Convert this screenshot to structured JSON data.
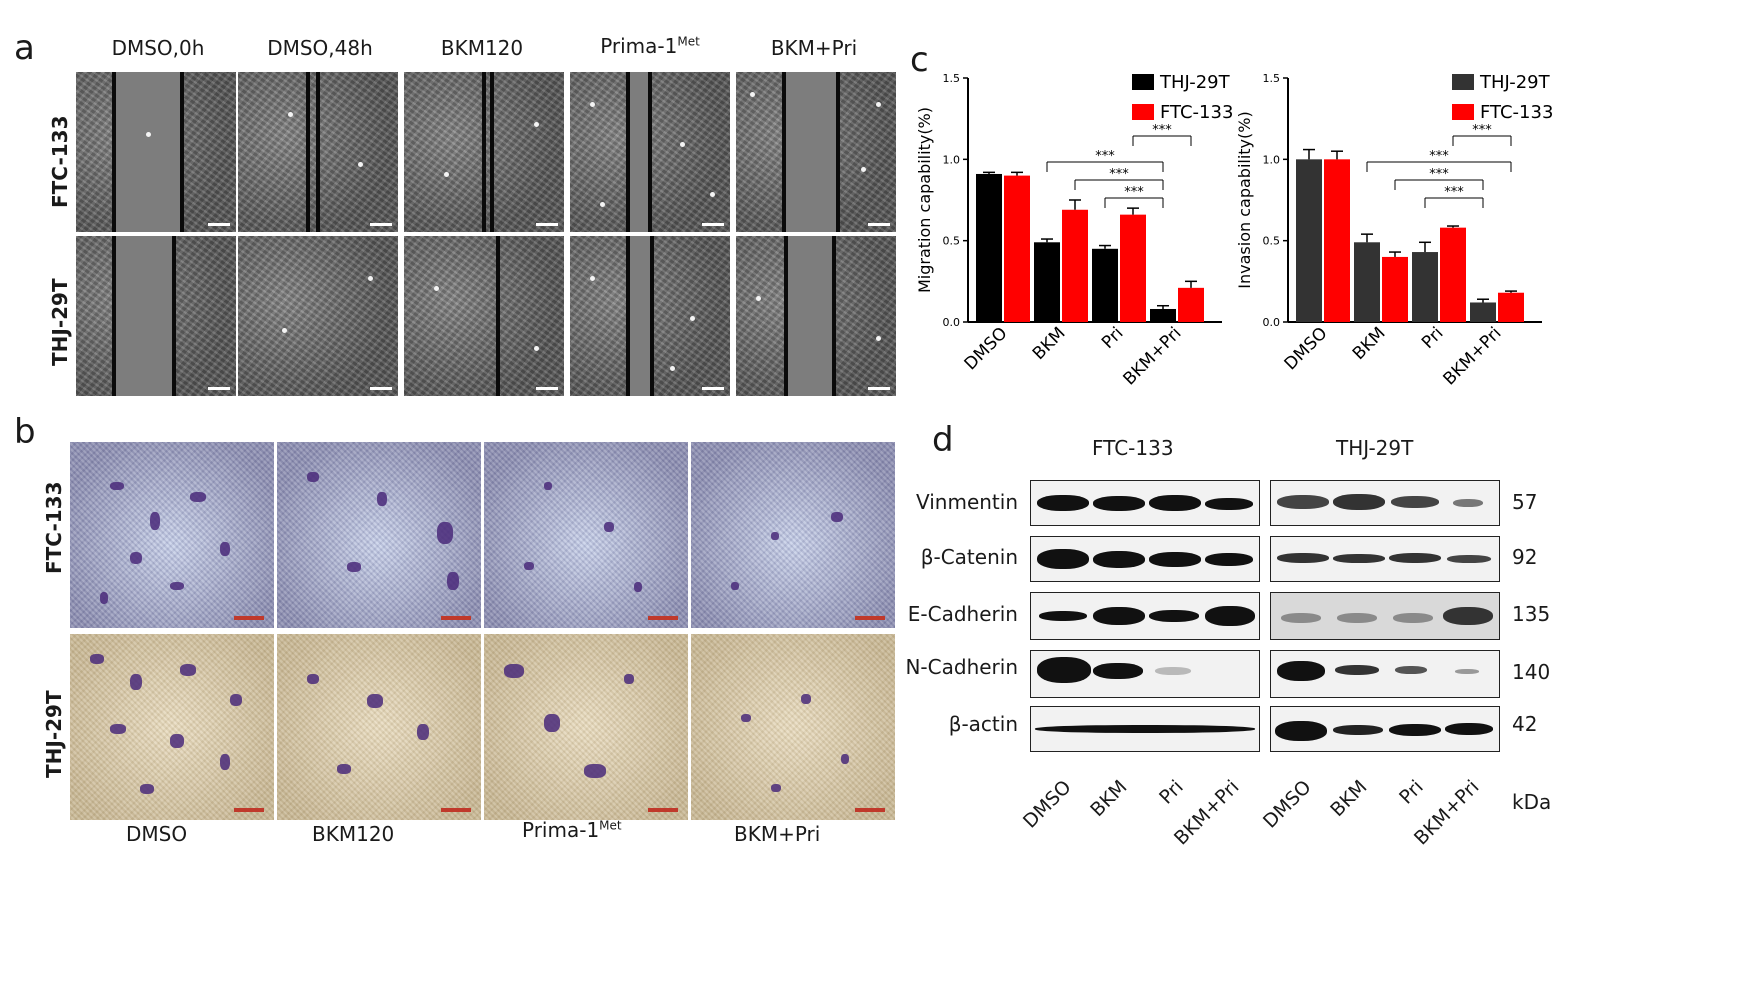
{
  "panel_a": {
    "letter": "a",
    "columns": [
      "DMSO,0h",
      "DMSO,48h",
      "BKM120",
      "Prima-1",
      "BKM+Pri"
    ],
    "prima_superscript": "Met",
    "rows": [
      "FTC-133",
      "THJ-29T"
    ]
  },
  "panel_b": {
    "letter": "b",
    "rows": [
      "FTC-133",
      "THJ-29T"
    ],
    "columns": [
      "DMSO",
      "BKM120",
      "Prima-1",
      "BKM+Pri"
    ],
    "prima_superscript": "Met"
  },
  "panel_c": {
    "letter": "c"
  },
  "panel_d": {
    "letter": "d",
    "cell_lines": [
      "FTC-133",
      "THJ-29T"
    ],
    "proteins": [
      "Vinmentin",
      "β-Catenin",
      "E-Cadherin",
      "N-Cadherin",
      "β-actin"
    ],
    "kda_values": [
      "57",
      "92",
      "135",
      "140",
      "42"
    ],
    "lanes": [
      "DMSO",
      "BKM",
      "Pri",
      "BKM+Pri",
      "DMSO",
      "BKM",
      "Pri",
      "BKM+Pri"
    ],
    "kda_unit": "kDa"
  },
  "colors": {
    "thj29t_left": "#000000",
    "thj29t_right": "#333333",
    "ftc133": "#ff0000"
  },
  "chart_data": [
    {
      "type": "bar",
      "ylabel": "Migration capability(%)",
      "categories": [
        "DMSO",
        "BKM",
        "Pri",
        "BKM+Pri"
      ],
      "ylim": [
        0,
        1.5
      ],
      "yticks": [
        "0.0",
        "0.5",
        "1.0",
        "1.5"
      ],
      "legend_placement": "top-right",
      "series": [
        {
          "name": "THJ-29T",
          "values": [
            0.91,
            0.49,
            0.45,
            0.08
          ],
          "errors": [
            0.01,
            0.02,
            0.02,
            0.02
          ]
        },
        {
          "name": "FTC-133",
          "values": [
            0.9,
            0.69,
            0.66,
            0.21
          ],
          "errors": [
            0.02,
            0.06,
            0.04,
            0.04
          ]
        }
      ],
      "significance": [
        {
          "label": "***",
          "from": "Pri.FTC-133",
          "to": "BKM+Pri.FTC-133"
        },
        {
          "label": "***",
          "from": "BKM.THJ-29T",
          "to": "BKM+Pri.THJ-29T"
        },
        {
          "label": "***",
          "from": "BKM.FTC-133",
          "to": "BKM+Pri.THJ-29T"
        },
        {
          "label": "***",
          "from": "Pri.THJ-29T",
          "to": "BKM+Pri.THJ-29T"
        }
      ]
    },
    {
      "type": "bar",
      "ylabel": "Invasion capability(%)",
      "categories": [
        "DMSO",
        "BKM",
        "Pri",
        "BKM+Pri"
      ],
      "ylim": [
        0,
        1.5
      ],
      "yticks": [
        "0.0",
        "0.5",
        "1.0",
        "1.5"
      ],
      "legend_placement": "top-right",
      "series": [
        {
          "name": "THJ-29T",
          "values": [
            1.0,
            0.49,
            0.43,
            0.12
          ],
          "errors": [
            0.06,
            0.05,
            0.06,
            0.02
          ]
        },
        {
          "name": "FTC-133",
          "values": [
            1.0,
            0.4,
            0.58,
            0.18
          ],
          "errors": [
            0.05,
            0.03,
            0.01,
            0.01
          ]
        }
      ],
      "significance": [
        {
          "label": "***",
          "from": "Pri.FTC-133",
          "to": "BKM+Pri.FTC-133"
        },
        {
          "label": "***",
          "from": "BKM.THJ-29T",
          "to": "BKM+Pri.FTC-133"
        },
        {
          "label": "***",
          "from": "BKM.FTC-133",
          "to": "BKM+Pri.THJ-29T"
        },
        {
          "label": "***",
          "from": "Pri.THJ-29T",
          "to": "BKM+Pri.THJ-29T"
        }
      ]
    }
  ]
}
